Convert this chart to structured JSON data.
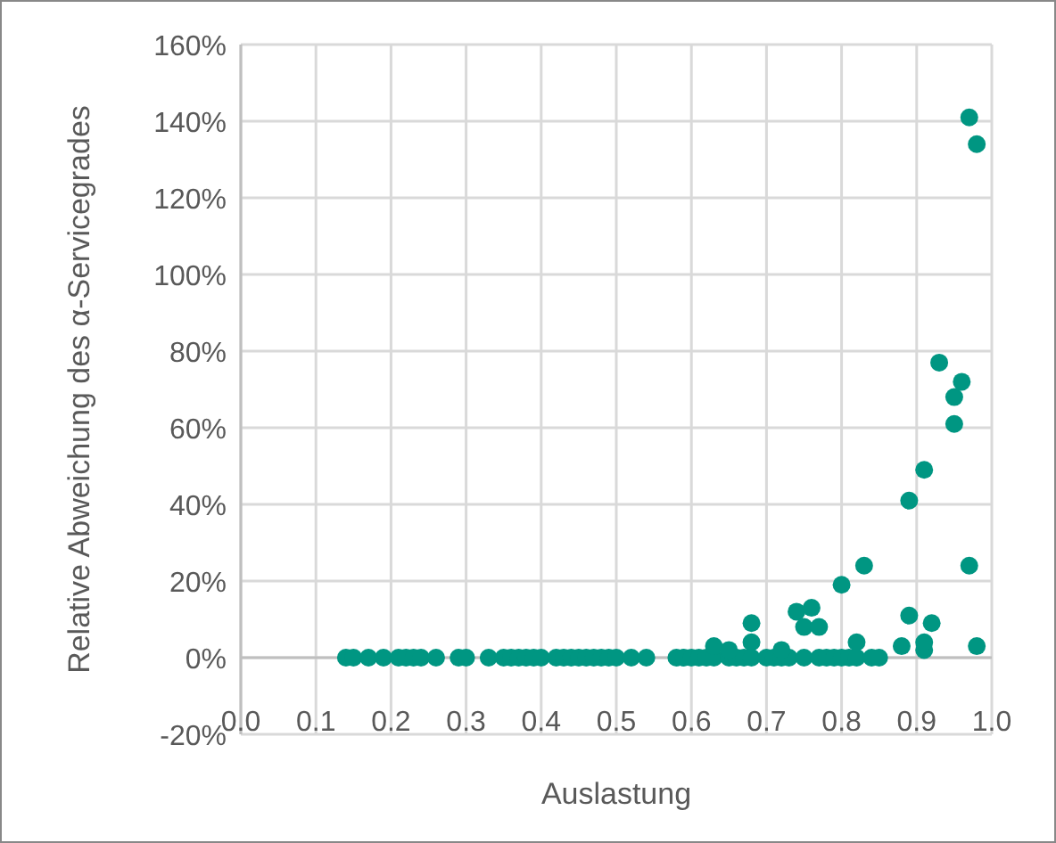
{
  "chart_data": {
    "type": "scatter",
    "xlabel": "Auslastung",
    "ylabel": "Relative Abweichung des α-Servicegrades",
    "x": [
      0.14,
      0.15,
      0.17,
      0.19,
      0.21,
      0.22,
      0.23,
      0.24,
      0.26,
      0.29,
      0.3,
      0.33,
      0.35,
      0.36,
      0.37,
      0.38,
      0.39,
      0.4,
      0.42,
      0.43,
      0.44,
      0.45,
      0.46,
      0.47,
      0.48,
      0.49,
      0.5,
      0.52,
      0.54,
      0.58,
      0.59,
      0.6,
      0.61,
      0.62,
      0.63,
      0.65,
      0.66,
      0.67,
      0.68,
      0.7,
      0.71,
      0.72,
      0.73,
      0.75,
      0.77,
      0.78,
      0.79,
      0.8,
      0.81,
      0.82,
      0.84,
      0.85,
      0.63,
      0.65,
      0.68,
      0.68,
      0.72,
      0.74,
      0.75,
      0.76,
      0.77,
      0.8,
      0.82,
      0.83,
      0.88,
      0.89,
      0.89,
      0.91,
      0.91,
      0.92,
      0.91,
      0.93,
      0.95,
      0.95,
      0.96,
      0.97,
      0.97,
      0.98,
      0.98
    ],
    "values": [
      0,
      0,
      0,
      0,
      0,
      0,
      0,
      0,
      0,
      0,
      0,
      0,
      0,
      0,
      0,
      0,
      0,
      0,
      0,
      0,
      0,
      0,
      0,
      0,
      0,
      0,
      0,
      0,
      0,
      0,
      0,
      0,
      0,
      0,
      0,
      0,
      0,
      0,
      0,
      0,
      0,
      0,
      0,
      0,
      0,
      0,
      0,
      0,
      0,
      0,
      0,
      0,
      3,
      2,
      9,
      4,
      2,
      12,
      8,
      13,
      8,
      19,
      4,
      24,
      3,
      11,
      41,
      2,
      4,
      9,
      49,
      77,
      61,
      68,
      72,
      24,
      141,
      134,
      3
    ],
    "color": "#009682",
    "marker": "circle",
    "grid": true,
    "xlim": [
      0,
      1
    ],
    "xticks": [
      {
        "value": 0,
        "label": "0.0"
      },
      0.1,
      0.2,
      0.3,
      0.4,
      0.5,
      0.6,
      0.7,
      0.8,
      0.9,
      {
        "value": 1,
        "label": "1.0"
      }
    ],
    "ylim": [
      -20,
      160
    ],
    "yticks": [
      {
        "value": -20,
        "label": "-20%"
      },
      {
        "value": 0,
        "label": "0%"
      },
      {
        "value": 20,
        "label": "20%"
      },
      {
        "value": 40,
        "label": "40%"
      },
      {
        "value": 60,
        "label": "60%"
      },
      {
        "value": 80,
        "label": "80%"
      },
      {
        "value": 100,
        "label": "100%"
      },
      {
        "value": 120,
        "label": "120%"
      },
      {
        "value": 140,
        "label": "140%"
      },
      {
        "value": 160,
        "label": "160%"
      }
    ]
  }
}
